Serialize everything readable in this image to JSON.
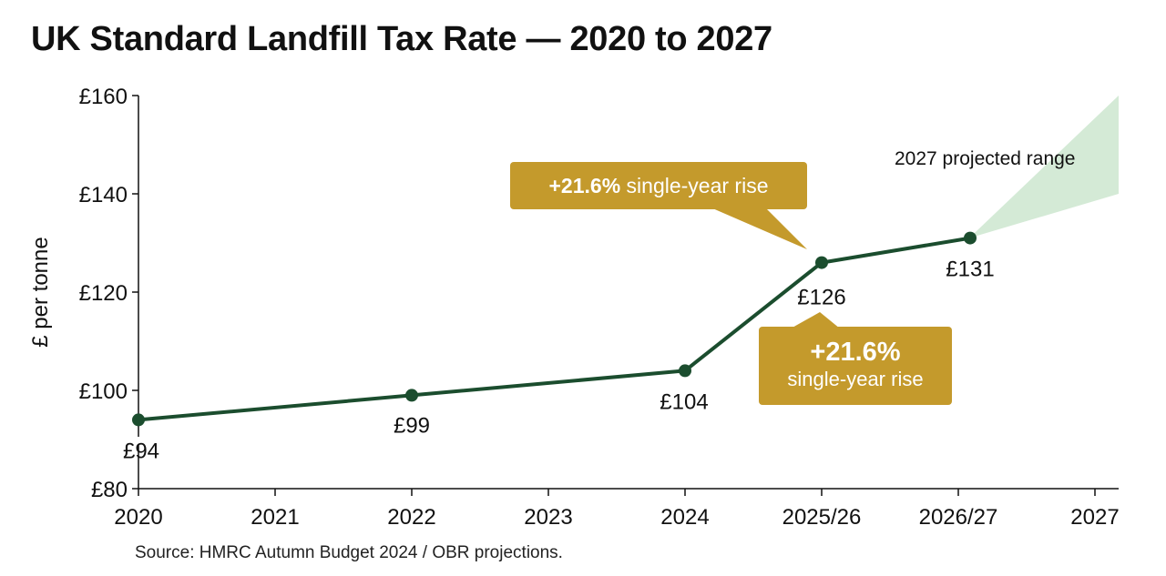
{
  "title": "UK Standard Landfill Tax Rate — 2020 to 2027",
  "source": "Source: HMRC Autumn Budget 2024 / OBR projections.",
  "chart_data": {
    "type": "line",
    "title": "UK Standard Landfill Tax Rate — 2020 to 2027",
    "xlabel": "",
    "ylabel": "£ per tonne",
    "categories": [
      "2020",
      "2021",
      "2022",
      "2023",
      "2024",
      "2025/26",
      "2026/27",
      "2027"
    ],
    "ylim": [
      80,
      160
    ],
    "yticks": [
      80,
      100,
      120,
      140,
      160
    ],
    "ytick_labels": [
      "£80",
      "£100",
      "£120",
      "£140",
      "£160"
    ],
    "grid": false,
    "series": [
      {
        "points": [
          {
            "x": "2020",
            "y": 94,
            "label": "£94"
          },
          {
            "x": "2022",
            "y": 99,
            "label": "£99"
          },
          {
            "x": "2024",
            "y": 104,
            "label": "£104"
          },
          {
            "x": "2025/26",
            "y": 126,
            "label": "£126"
          },
          {
            "x": "2026/27",
            "y": 131,
            "label": "£131"
          }
        ],
        "color": "#1b4d2e"
      }
    ],
    "projected_range": {
      "label": "2027 projected range",
      "x": "2027",
      "low": 140,
      "high": 160,
      "color": "#cfe8d2"
    },
    "annotations": [
      {
        "bold": "+21.6%",
        "text": "single-year rise",
        "color": "#c49a2c"
      },
      {
        "bold": "+21.6%",
        "text": "single-year rise",
        "color": "#c49a2c"
      }
    ]
  }
}
